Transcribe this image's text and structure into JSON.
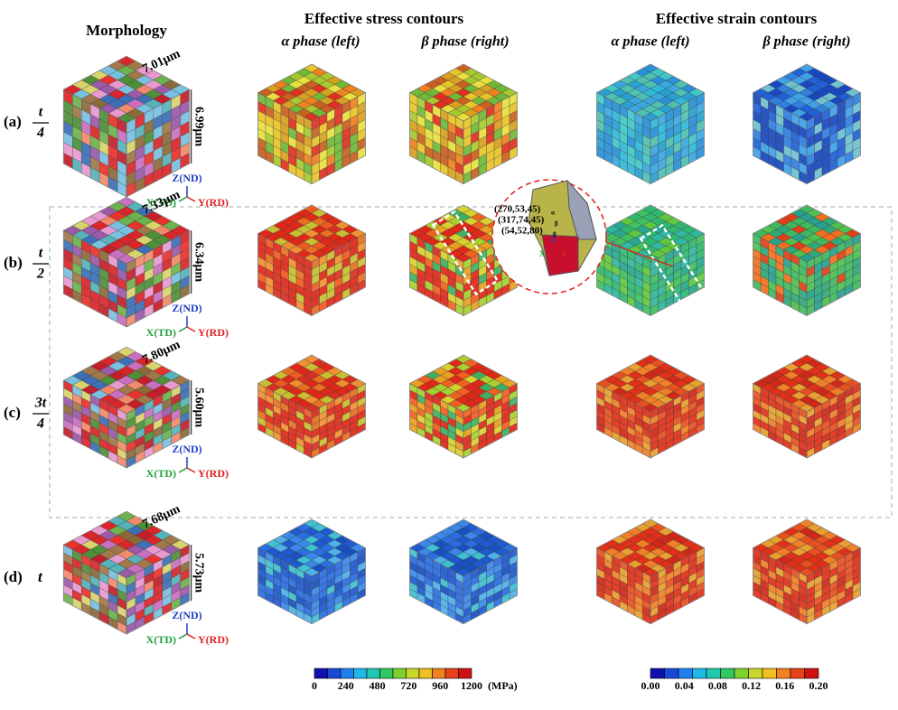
{
  "headers": {
    "morphology": "Morphology",
    "stress": "Effective stress contours",
    "strain": "Effective strain contours",
    "stress_alpha": "α phase (left)",
    "stress_beta": "β phase (right)",
    "strain_alpha": "α phase (left)",
    "strain_beta": "β phase (right)"
  },
  "rows": [
    {
      "label": "(a)",
      "numerator": "t",
      "denominator": "4",
      "width": "7.01μm",
      "height": "6.99μm"
    },
    {
      "label": "(b)",
      "numerator": "t",
      "denominator": "2",
      "width": "7.33μm",
      "height": "6.34μm"
    },
    {
      "label": "(c)",
      "numerator": "3t",
      "denominator": "4",
      "width": "7.80μm",
      "height": "5.60μm"
    },
    {
      "label": "(d)",
      "time": "t",
      "width": "7.68μm",
      "height": "5.73μm"
    }
  ],
  "triad": {
    "z": "Z(ND)",
    "x": "X(TD)",
    "y": "Y(RD)"
  },
  "inset": {
    "orientations": [
      {
        "text": "(270,53,45)",
        "phase": "α"
      },
      {
        "text": "(317,74,45)",
        "phase": "β"
      },
      {
        "text": "(54,52,80)",
        "phase": "β"
      }
    ],
    "axes": {
      "x": "X",
      "y": "Y",
      "z": "Z"
    }
  },
  "colorbars": {
    "stress": {
      "ticks": [
        "0",
        "240",
        "480",
        "720",
        "960",
        "1200"
      ],
      "unit": "(MPa)"
    },
    "strain": {
      "ticks": [
        "0.00",
        "0.04",
        "0.08",
        "0.12",
        "0.16",
        "0.20"
      ]
    }
  }
}
